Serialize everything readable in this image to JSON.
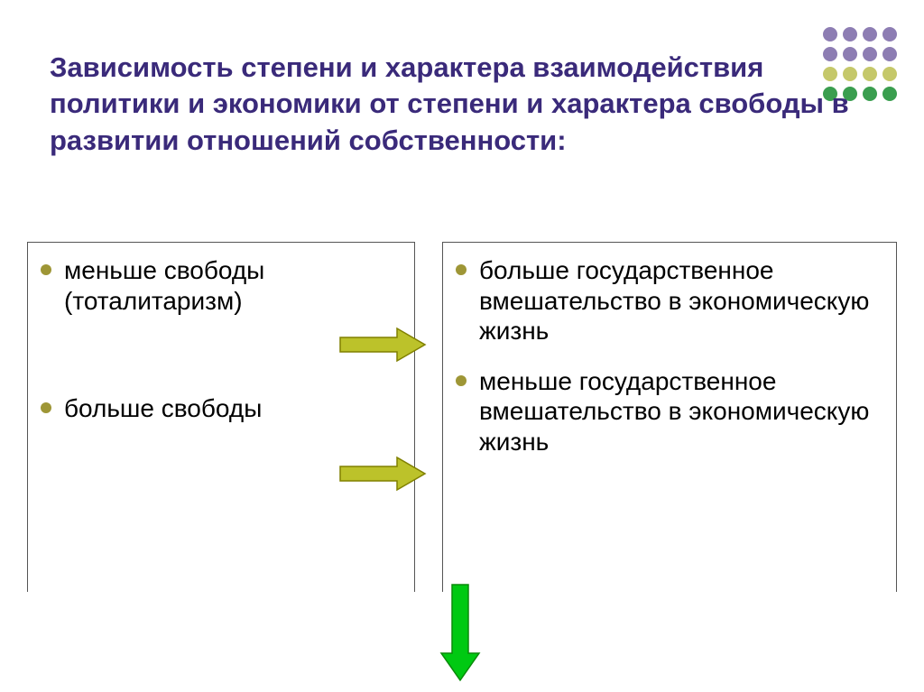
{
  "title": "Зависимость степени и характера взаимодействия политики и экономики от степени и характера свободы в развитии отношений собственности:",
  "title_color": "#3a2a7a",
  "left": {
    "items": [
      "меньше свободы (тоталитаризм)",
      "больше свободы"
    ]
  },
  "right": {
    "items": [
      "больше государственное вмешательство в экономическую жизнь",
      "меньше государственное вмешательство в экономическую жизнь"
    ]
  },
  "bullet_color": "#9e9636",
  "dot_pattern": {
    "rows": 4,
    "cols": 4,
    "colors": [
      "#8d7db3",
      "#8d7db3",
      "#8d7db3",
      "#8d7db3",
      "#8d7db3",
      "#8d7db3",
      "#8d7db3",
      "#8d7db3",
      "#c5c86a",
      "#c5c86a",
      "#c5c86a",
      "#c5c86a",
      "#3a9e4f",
      "#3a9e4f",
      "#3a9e4f",
      "#3a9e4f"
    ]
  },
  "arrows": {
    "horizontal_color_fill": "#bcc22a",
    "horizontal_color_stroke": "#808000",
    "vertical_color_fill": "#00c912",
    "vertical_color_stroke": "#0a8a0a"
  },
  "text_font_size": 28,
  "title_font_size": 31,
  "border_color": "#555555",
  "background": "#ffffff"
}
